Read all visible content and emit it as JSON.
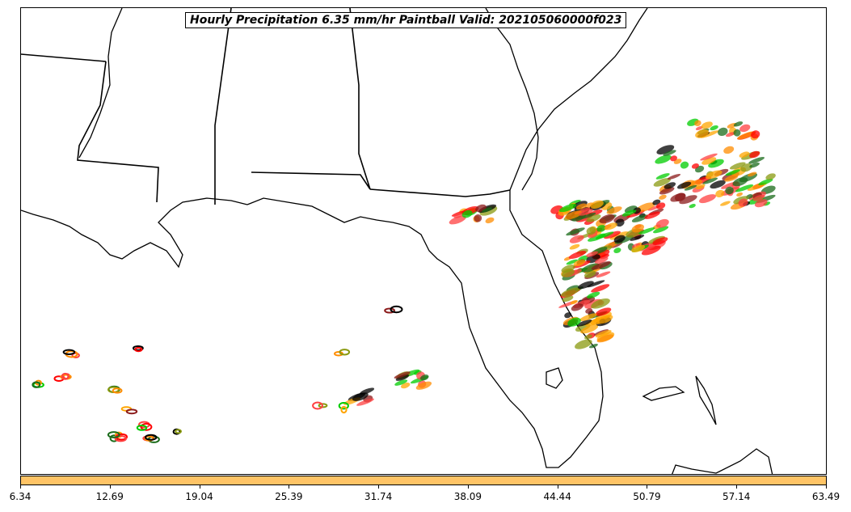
{
  "title": "Hourly Precipitation 6.35 mm/hr Paintball Valid: 202105060000f023",
  "colorbar": {
    "color": "#ffc466",
    "ticks": [
      "6.34",
      "12.69",
      "19.04",
      "25.39",
      "31.74",
      "38.09",
      "44.44",
      "50.79",
      "57.14",
      "63.49"
    ]
  },
  "member_colors": [
    "#000000",
    "#1a6b1a",
    "#00cc00",
    "#ff0000",
    "#8b1a1a",
    "#ff8c00",
    "#ffa500",
    "#8a9a10",
    "#ff4040"
  ],
  "map": {
    "boundary_color": "#000000",
    "land_fill": "#ffffff"
  }
}
